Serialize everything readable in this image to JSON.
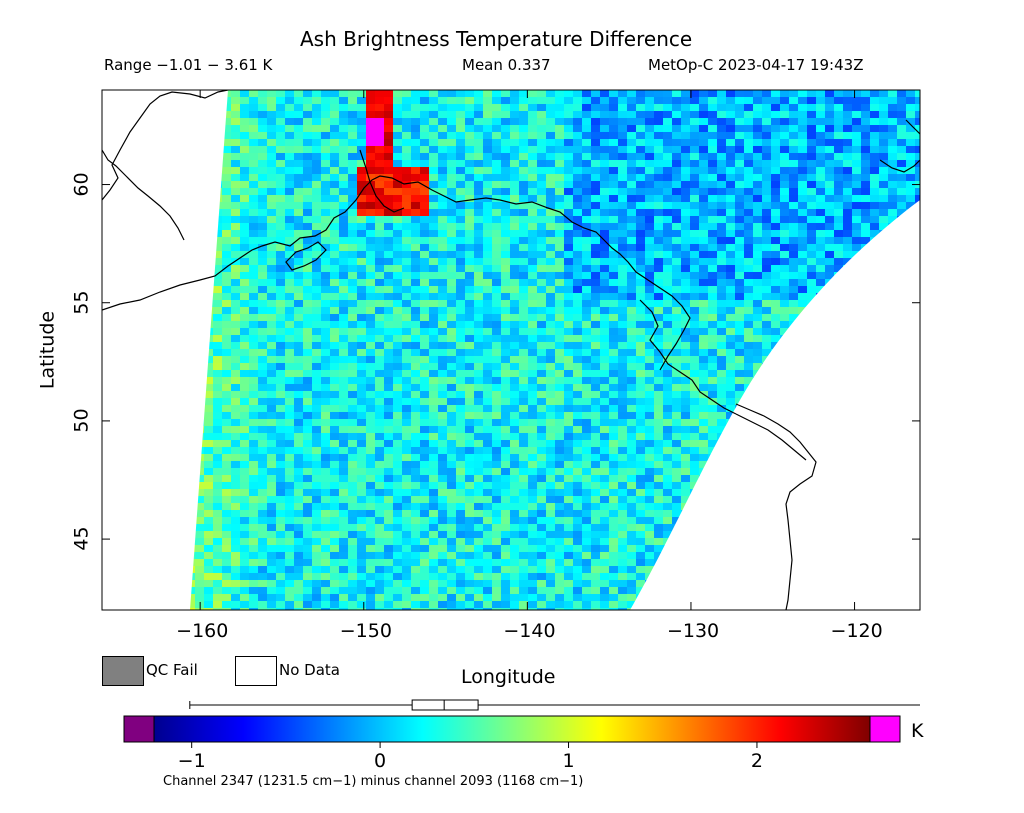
{
  "header": {
    "title": "Ash Brightness Temperature Difference",
    "range_text": "Range −1.01 − 3.61 K",
    "mean_text": "Mean 0.337",
    "satellite_time": "MetOp-C 2023-04-17 19:43Z"
  },
  "axes": {
    "xlabel": "Longitude",
    "ylabel": "Latitude",
    "xticks": [
      -160,
      -150,
      -140,
      -130,
      -120
    ],
    "xtick_labels": [
      "−160",
      "−150",
      "−140",
      "−130",
      "−120"
    ],
    "yticks": [
      45,
      50,
      55,
      60
    ],
    "ytick_labels": [
      "45",
      "50",
      "55",
      "60"
    ],
    "xlim": [
      -166,
      -116
    ],
    "ylim": [
      42,
      64
    ]
  },
  "legend": {
    "qc_fail_label": "QC Fail",
    "qc_fail_color": "#808080",
    "no_data_label": "No Data",
    "no_data_color": "#ffffff"
  },
  "colorbar": {
    "unit": "K",
    "range": [
      -1.2,
      2.6
    ],
    "tick_values": [
      -1,
      0,
      1,
      2
    ],
    "tick_labels": [
      "−1",
      "0",
      "1",
      "2"
    ],
    "under_color": "#800080",
    "over_color": "#ff00ff",
    "caption": "Channel 2347 (1231.5 cm−1) minus channel 2093 (1168 cm−1)"
  },
  "boxplot": {
    "whisker_low": -1.01,
    "q1": 0.17,
    "median": 0.34,
    "q3": 0.52,
    "whisker_high": 3.61
  },
  "colors": {
    "coastline": "#000000",
    "frame": "#000000",
    "background_swath": "#22c8ec"
  }
}
